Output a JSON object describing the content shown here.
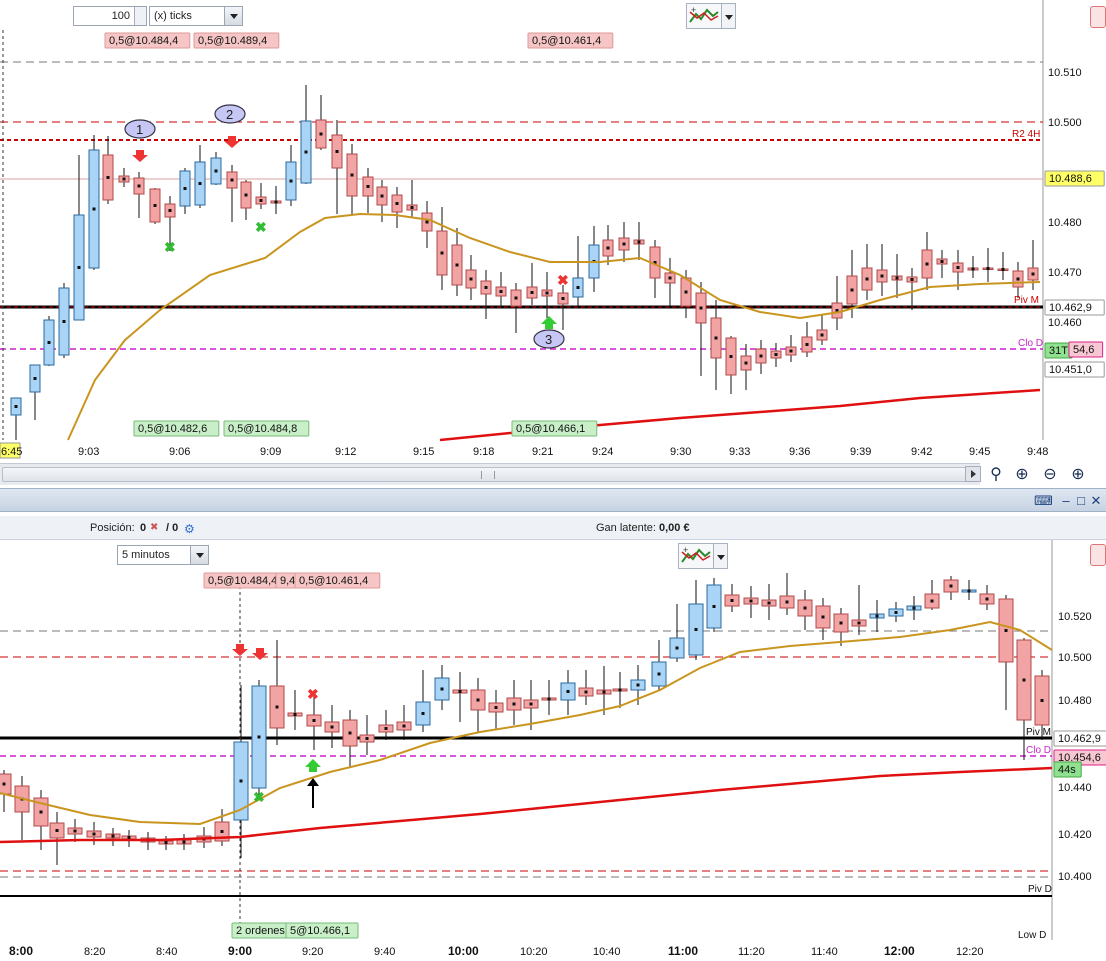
{
  "top_chart": {
    "ticks_value": "100",
    "ticks_unit": "(x) ticks",
    "indicator_icon": "indicator-chart-icon",
    "y_axis_labels": [
      "10.510",
      "10.500",
      "10.480",
      "10.470",
      "10.460"
    ],
    "price_tags": [
      {
        "text": "10.488,6",
        "kind": "yellow"
      },
      {
        "text": "10.462,9",
        "kind": "white"
      },
      {
        "text": "31T",
        "kind": "green"
      },
      {
        "text": "54,6",
        "kind": "pink"
      },
      {
        "text": "10.451,0",
        "kind": "white"
      }
    ],
    "line_labels": [
      "R2 4H",
      "Piv M",
      "Clo D"
    ],
    "x_labels": [
      "6:45",
      "9:03",
      "9:06",
      "9:09",
      "9:12",
      "9:15",
      "9:18",
      "9:21",
      "9:24",
      "9:30",
      "9:33",
      "9:36",
      "9:39",
      "9:42",
      "9:45",
      "9:48"
    ],
    "order_tags_top": [
      "0,5@10.484,4",
      "0,5@10.489,4",
      "0,5@10.461,4"
    ],
    "order_tags_bottom": [
      "0,5@10.482,6",
      "0,5@10.484,8",
      "0,5@10.466,1"
    ],
    "markers": [
      "1",
      "2",
      "3"
    ]
  },
  "window": {
    "icons": [
      "keyboard-icon",
      "minimize-icon",
      "maximize-icon",
      "close-icon"
    ]
  },
  "info_bar": {
    "position_label": "Posición:",
    "position_value": "0",
    "position_sep": "/ 0",
    "latent_label": "Gan latente:",
    "latent_value": "0,00 €"
  },
  "bottom_chart": {
    "timeframe": "5 minutos",
    "y_axis_labels": [
      "10.520",
      "10.500",
      "10.480",
      "10.440",
      "10.420",
      "10.400"
    ],
    "price_tags": [
      {
        "text": "10.462,9",
        "kind": "white"
      },
      {
        "text": "10.454,6",
        "kind": "pink"
      },
      {
        "text": "44s",
        "kind": "green"
      }
    ],
    "line_labels": [
      "Piv M",
      "Clo D",
      "Piv D",
      "Low D"
    ],
    "x_labels": [
      "8:00",
      "8:20",
      "8:40",
      "9:00",
      "9:20",
      "9:40",
      "10:00",
      "10:20",
      "10:40",
      "11:00",
      "11:20",
      "11:40",
      "12:00",
      "12:20"
    ],
    "order_tags_top": [
      "0,5@10.484,4",
      "9,4",
      "0,5@10.461,4"
    ],
    "order_tags_bottom": [
      "2 ordenes",
      "5@10.466,1"
    ]
  },
  "colors": {
    "bull": "#a9d4f5",
    "bear": "#f2a4a4",
    "ema_short": "#c9951e",
    "ema_long": "#e01010",
    "pivot": "#000000",
    "close_d": "#cc22cc",
    "resistance": "#cc0000"
  }
}
